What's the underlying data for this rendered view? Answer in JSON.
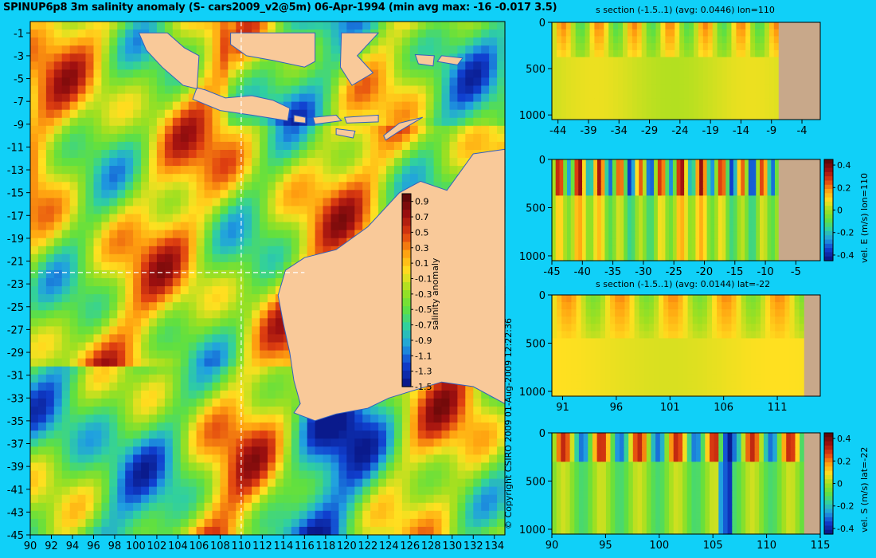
{
  "title": "SPINUP6p8 3m salinity anomaly (S- cars2009_v2@5m) 06-Apr-1994 (min avg max: -16 -0.017 3.5)",
  "credit": "© Copyright CSIRO 2009 01-Aug-2009 12:22:36",
  "colors": {
    "background": "#10d0f8",
    "land": "#f9c999",
    "section_land": "#c8a88a",
    "ramp": [
      "#0a1a8c",
      "#1040d0",
      "#20a0e0",
      "#30d0a0",
      "#60e040",
      "#a0e020",
      "#ffe020",
      "#ffa010",
      "#e04010",
      "#a01010",
      "#600808"
    ]
  },
  "chart_data": [
    {
      "id": "map",
      "type": "heatmap",
      "title": "SPINUP6p8 3m salinity anomaly (S- cars2009_v2@5m) 06-Apr-1994 (min avg max: -16 -0.017 3.5)",
      "x_ticks": [
        "90",
        "92",
        "94",
        "96",
        "98",
        "100",
        "102",
        "104",
        "106",
        "108",
        "110",
        "112",
        "114",
        "116",
        "118",
        "120",
        "122",
        "124",
        "126",
        "128",
        "130",
        "132",
        "134"
      ],
      "y_ticks": [
        "-1",
        "-3",
        "-5",
        "-7",
        "-9",
        "-11",
        "-13",
        "-15",
        "-17",
        "-19",
        "-21",
        "-23",
        "-25",
        "-27",
        "-29",
        "-31",
        "-33",
        "-35",
        "-37",
        "-39",
        "-41",
        "-43",
        "-45"
      ],
      "xlim": [
        90,
        135
      ],
      "ylim": [
        -45,
        0
      ],
      "colorbar": {
        "label": "salinity anomaly",
        "ticks": [
          "0.9",
          "0.7",
          "0.5",
          "0.3",
          "0.1",
          "-0.1",
          "-0.3",
          "-0.5",
          "-0.7",
          "-0.9",
          "-1.1",
          "-1.3",
          "-1.5"
        ],
        "range": [
          -1.5,
          1.0
        ]
      },
      "crosshair": {
        "lon": 110,
        "lat": -22
      },
      "stats": {
        "min": -16,
        "avg": -0.017,
        "max": 3.5
      }
    },
    {
      "id": "s_section_lon",
      "type": "heatmap",
      "title": "s section (-1.5..1) (avg: 0.0446) lon=110",
      "x_ticks": [
        "-44",
        "-39",
        "-34",
        "-29",
        "-24",
        "-19",
        "-14",
        "-9",
        "-4"
      ],
      "y_ticks": [
        "0",
        "500",
        "1000"
      ],
      "xlim": [
        -45,
        -1
      ],
      "ylim": [
        1050,
        0
      ],
      "avg": 0.0446
    },
    {
      "id": "vel_e",
      "type": "heatmap",
      "title": "",
      "x_ticks": [
        "-45",
        "-40",
        "-35",
        "-30",
        "-25",
        "-20",
        "-15",
        "-10",
        "-5"
      ],
      "y_ticks": [
        "0",
        "500",
        "1000"
      ],
      "xlim": [
        -45,
        -1
      ],
      "ylim": [
        1050,
        0
      ],
      "colorbar": {
        "label": "vel. E (m/s) lon=110",
        "ticks": [
          "0.4",
          "0.2",
          "0",
          "-0.2",
          "-0.4"
        ],
        "range": [
          -0.45,
          0.45
        ]
      }
    },
    {
      "id": "s_section_lat",
      "type": "heatmap",
      "title": "s section (-1.5..1) (avg: 0.0144) lat=-22",
      "x_ticks": [
        "91",
        "96",
        "101",
        "106",
        "111"
      ],
      "y_ticks": [
        "0",
        "500",
        "1000"
      ],
      "xlim": [
        90,
        115
      ],
      "ylim": [
        1050,
        0
      ],
      "avg": 0.0144
    },
    {
      "id": "vel_s",
      "type": "heatmap",
      "title": "",
      "x_ticks": [
        "90",
        "95",
        "100",
        "105",
        "110",
        "115"
      ],
      "y_ticks": [
        "0",
        "500",
        "1000"
      ],
      "xlim": [
        90,
        115
      ],
      "ylim": [
        1050,
        0
      ],
      "colorbar": {
        "label": "vel. S (m/s) lat=-22",
        "ticks": [
          "0.4",
          "0.2",
          "0",
          "-0.2",
          "-0.4"
        ],
        "range": [
          -0.45,
          0.45
        ]
      }
    }
  ]
}
